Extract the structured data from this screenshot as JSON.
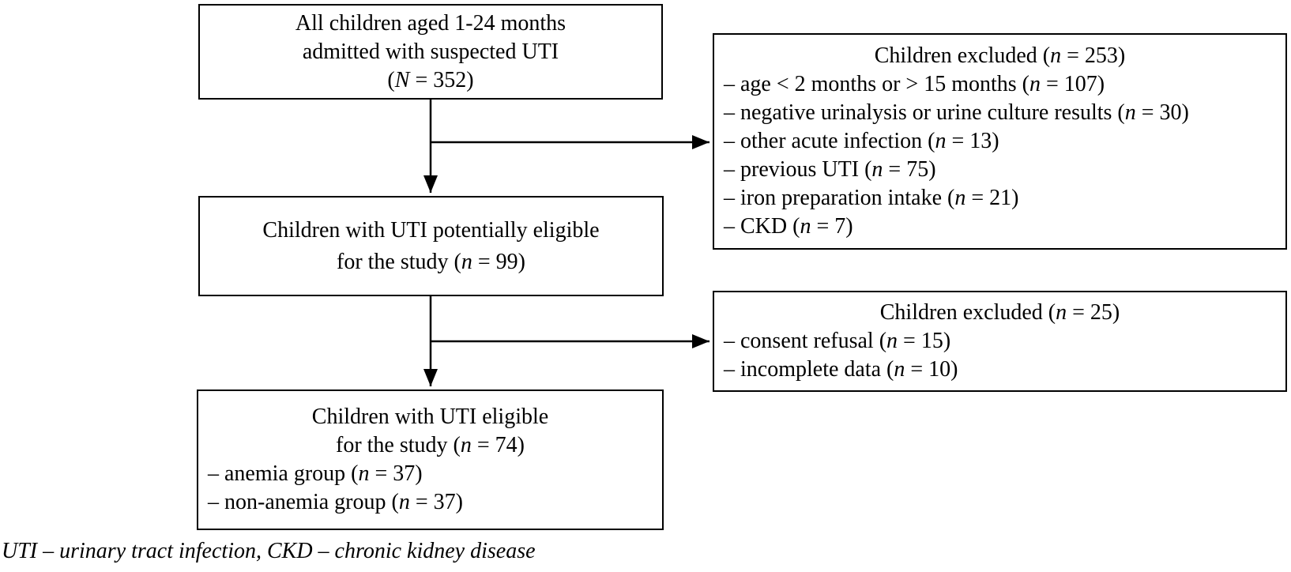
{
  "boxes": {
    "admitted": {
      "lines": [
        "All children aged 1-24 months",
        "admitted with suspected UTI",
        "(N = 352)"
      ]
    },
    "excluded1": {
      "title": "Children excluded (n = 253)",
      "items": [
        "– age < 2 months or > 15 months (n = 107)",
        "– negative urinalysis or urine culture results (n = 30)",
        "– other acute infection (n = 13)",
        "– previous UTI (n = 75)",
        "– iron preparation intake (n = 21)",
        "– CKD (n = 7)"
      ]
    },
    "eligible": {
      "lines": [
        "Children with UTI potentially eligible",
        "for the study (n = 99)"
      ]
    },
    "excluded2": {
      "title": "Children excluded (n = 25)",
      "items": [
        "– consent refusal (n = 15)",
        "– incomplete data (n = 10)"
      ]
    },
    "final": {
      "lines": [
        "Children with UTI eligible",
        "for the study (n = 74)"
      ],
      "items": [
        "– anemia group (n = 37)",
        "– non-anemia group (n = 37)"
      ]
    }
  },
  "footnote": "UTI – urinary tract infection, CKD – chronic kidney disease",
  "colors": {
    "line": "#000000",
    "text": "#000000",
    "background": "#ffffff"
  }
}
